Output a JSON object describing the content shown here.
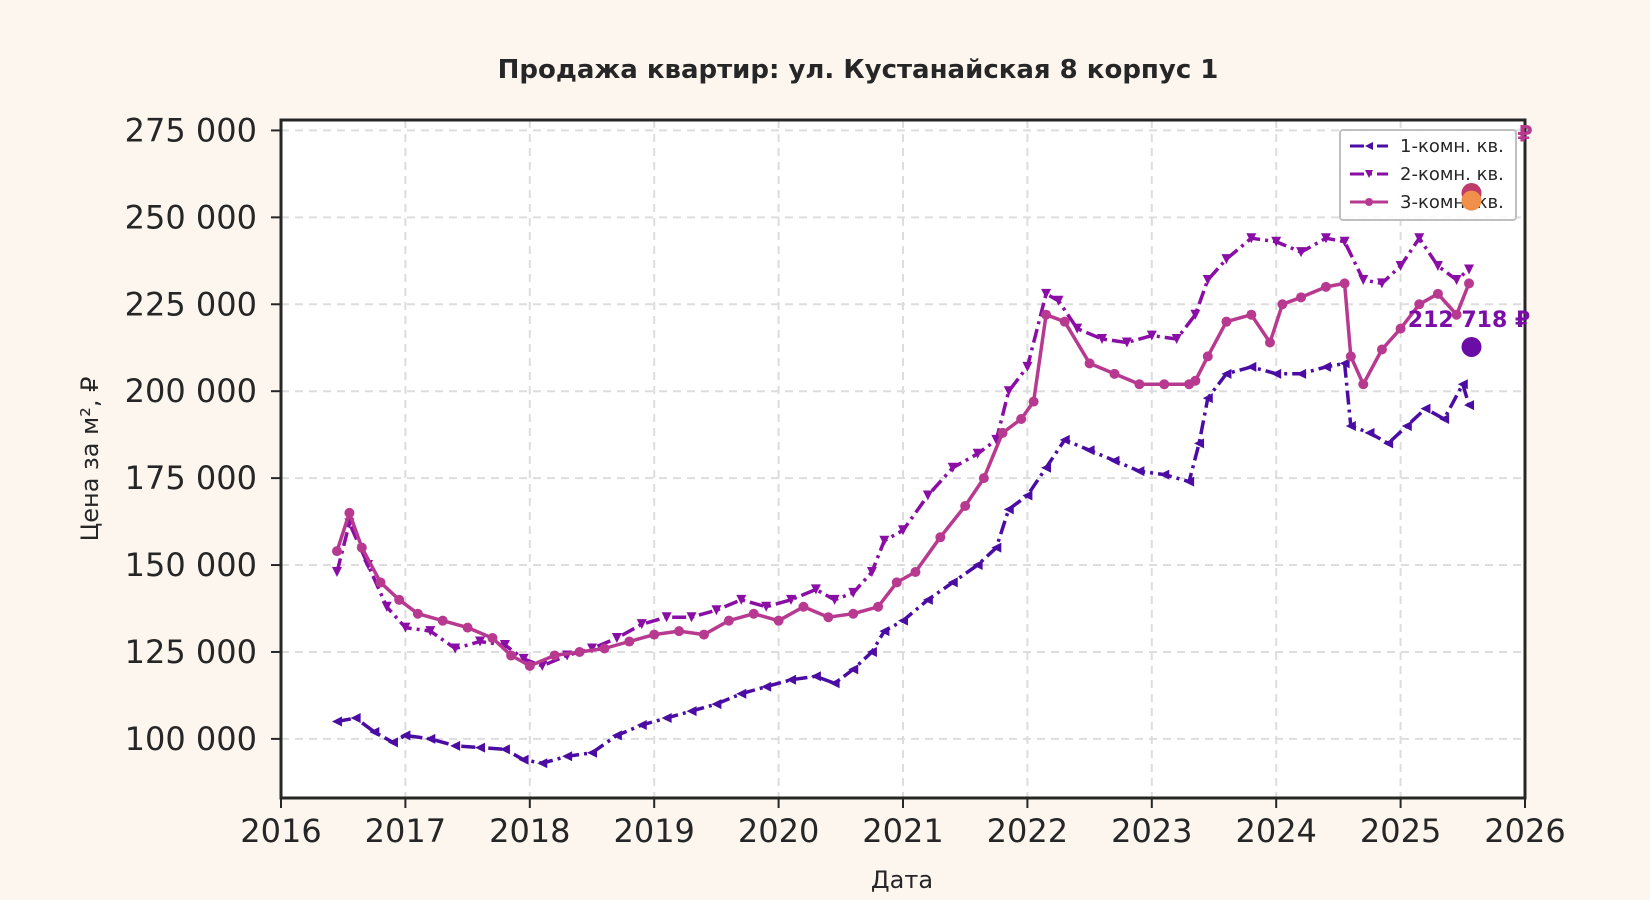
{
  "chart_data": {
    "type": "line",
    "title": "Продажа квартир: ул. Кустанайская 8 корпус 1",
    "xlabel": "Дата",
    "ylabel": "Цена за м², ₽",
    "xlim": [
      2016,
      2026
    ],
    "ylim": [
      83000,
      278000
    ],
    "x_ticks": [
      "2016",
      "2017",
      "2018",
      "2019",
      "2020",
      "2021",
      "2022",
      "2023",
      "2024",
      "2025",
      "2026"
    ],
    "y_ticks": [
      {
        "value": 100000,
        "label": "100 000"
      },
      {
        "value": 125000,
        "label": "125 000"
      },
      {
        "value": 150000,
        "label": "150 000"
      },
      {
        "value": 175000,
        "label": "175 000"
      },
      {
        "value": 200000,
        "label": "200 000"
      },
      {
        "value": 225000,
        "label": "225 000"
      },
      {
        "value": 250000,
        "label": "250 000"
      },
      {
        "value": 275000,
        "label": "275 000"
      }
    ],
    "grid": true,
    "legend_position": "top-right",
    "series": [
      {
        "name": "1-комн. кв.",
        "color": "#4a0ca3",
        "marker": "left-triangle",
        "dash": "dash-dot",
        "x": [
          2016.45,
          2016.6,
          2016.75,
          2016.9,
          2017.0,
          2017.2,
          2017.4,
          2017.6,
          2017.8,
          2017.95,
          2018.1,
          2018.3,
          2018.5,
          2018.7,
          2018.9,
          2019.1,
          2019.3,
          2019.5,
          2019.7,
          2019.9,
          2020.1,
          2020.3,
          2020.45,
          2020.6,
          2020.75,
          2020.85,
          2021.0,
          2021.2,
          2021.4,
          2021.6,
          2021.75,
          2021.85,
          2022.0,
          2022.15,
          2022.3,
          2022.5,
          2022.7,
          2022.9,
          2023.1,
          2023.3,
          2023.38,
          2023.45,
          2023.6,
          2023.8,
          2024.0,
          2024.2,
          2024.4,
          2024.55,
          2024.6,
          2024.75,
          2024.9,
          2025.05,
          2025.2,
          2025.35,
          2025.5,
          2025.55
        ],
        "y": [
          105000,
          106000,
          102000,
          99000,
          101000,
          100000,
          98000,
          97500,
          97000,
          94000,
          93000,
          95000,
          96000,
          101000,
          104000,
          106000,
          108000,
          110000,
          113000,
          115000,
          117000,
          118000,
          116000,
          120000,
          125000,
          131000,
          134000,
          140000,
          145000,
          150000,
          155000,
          166000,
          170000,
          178000,
          186000,
          183000,
          180000,
          177000,
          176000,
          174000,
          185000,
          198000,
          205000,
          207000,
          205000,
          205000,
          207000,
          208000,
          190000,
          188000,
          185000,
          190000,
          195000,
          192000,
          202000,
          196000
        ]
      },
      {
        "name": "2-комн. кв.",
        "color": "#8a0da6",
        "marker": "down-triangle",
        "dash": "dash-dot",
        "x": [
          2016.45,
          2016.55,
          2016.7,
          2016.85,
          2017.0,
          2017.2,
          2017.4,
          2017.6,
          2017.8,
          2017.95,
          2018.1,
          2018.3,
          2018.5,
          2018.7,
          2018.9,
          2019.1,
          2019.3,
          2019.5,
          2019.7,
          2019.9,
          2020.1,
          2020.3,
          2020.45,
          2020.6,
          2020.75,
          2020.85,
          2021.0,
          2021.2,
          2021.4,
          2021.6,
          2021.75,
          2021.85,
          2022.0,
          2022.15,
          2022.25,
          2022.4,
          2022.6,
          2022.8,
          2023.0,
          2023.2,
          2023.35,
          2023.45,
          2023.6,
          2023.8,
          2024.0,
          2024.2,
          2024.4,
          2024.55,
          2024.7,
          2024.85,
          2025.0,
          2025.15,
          2025.3,
          2025.45,
          2025.55
        ],
        "y": [
          148000,
          162000,
          150000,
          138000,
          132000,
          131000,
          126000,
          128000,
          127000,
          123000,
          121000,
          124000,
          126000,
          129000,
          133000,
          135000,
          135000,
          137000,
          140000,
          138000,
          140000,
          143000,
          140000,
          142000,
          148000,
          157000,
          160000,
          170000,
          178000,
          182000,
          186000,
          200000,
          207000,
          228000,
          226000,
          218000,
          215000,
          214000,
          216000,
          215000,
          222000,
          232000,
          238000,
          244000,
          243000,
          240000,
          244000,
          243000,
          232000,
          231000,
          236000,
          244000,
          236000,
          232000,
          235000
        ]
      },
      {
        "name": "3-комн. кв.",
        "color": "#b83a90",
        "marker": "circle",
        "dash": "solid",
        "x": [
          2016.45,
          2016.55,
          2016.65,
          2016.8,
          2016.95,
          2017.1,
          2017.3,
          2017.5,
          2017.7,
          2017.85,
          2018.0,
          2018.2,
          2018.4,
          2018.6,
          2018.8,
          2019.0,
          2019.2,
          2019.4,
          2019.6,
          2019.8,
          2020.0,
          2020.2,
          2020.4,
          2020.6,
          2020.8,
          2020.95,
          2021.1,
          2021.3,
          2021.5,
          2021.65,
          2021.8,
          2021.95,
          2022.05,
          2022.15,
          2022.3,
          2022.5,
          2022.7,
          2022.9,
          2023.1,
          2023.3,
          2023.35,
          2023.45,
          2023.6,
          2023.8,
          2023.95,
          2024.05,
          2024.2,
          2024.4,
          2024.55,
          2024.6,
          2024.7,
          2024.85,
          2025.0,
          2025.15,
          2025.3,
          2025.45,
          2025.55
        ],
        "y": [
          154000,
          165000,
          155000,
          145000,
          140000,
          136000,
          134000,
          132000,
          129000,
          124000,
          121000,
          124000,
          125000,
          126000,
          128000,
          130000,
          131000,
          130000,
          134000,
          136000,
          134000,
          138000,
          135000,
          136000,
          138000,
          145000,
          148000,
          158000,
          167000,
          175000,
          188000,
          192000,
          197000,
          222000,
          220000,
          208000,
          205000,
          202000,
          202000,
          202000,
          203000,
          210000,
          220000,
          222000,
          214000,
          225000,
          227000,
          230000,
          231000,
          210000,
          202000,
          212000,
          218000,
          225000,
          228000,
          222000,
          231000
        ]
      }
    ],
    "legend_entries": [
      "1-комн. кв.",
      "2-комн. кв.",
      "3-комн. кв."
    ],
    "annotations": [
      {
        "text": "212 718 ₽",
        "x": 2025.55,
        "y": 212718,
        "color": "#7a0da6"
      },
      {
        "text": "₽",
        "x": 2026.0,
        "y": 266000,
        "color": "#b83a90"
      }
    ],
    "highlight_points": [
      {
        "x": 2025.57,
        "y": 212718,
        "color": "#6a0da6"
      },
      {
        "x": 2025.57,
        "y": 257000,
        "color": "#c03a6a"
      },
      {
        "x": 2025.57,
        "y": 254800,
        "color": "#f0904a"
      }
    ]
  }
}
